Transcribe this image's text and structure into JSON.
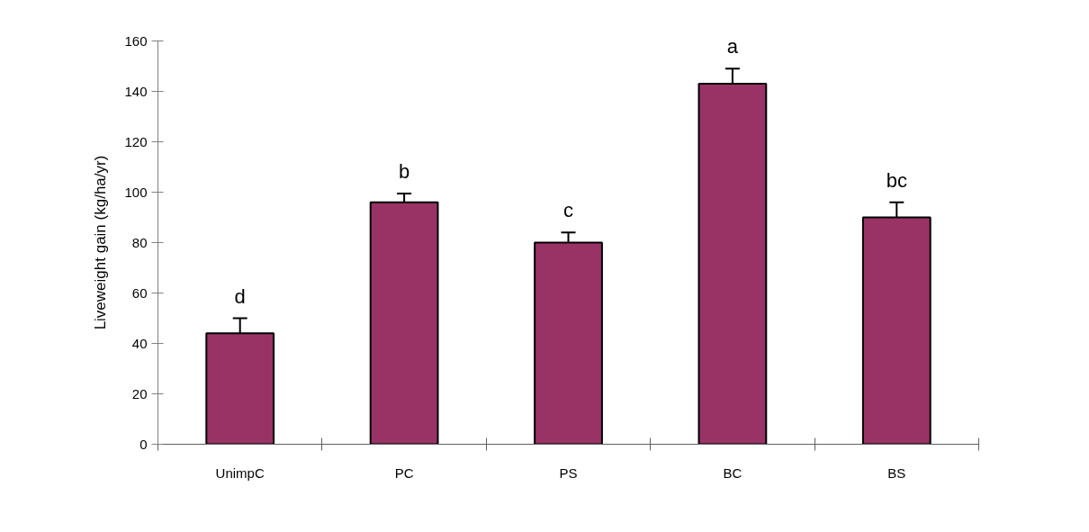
{
  "chart_data": {
    "type": "bar",
    "ylabel": "Liveweight gain (kg/ha/yr)",
    "categories": [
      "UnimpC",
      "PC",
      "PS",
      "BC",
      "BS"
    ],
    "values": [
      44,
      96,
      80,
      143,
      90
    ],
    "errors": [
      6,
      3.5,
      4,
      6,
      6
    ],
    "color": "#993366",
    "ylim": [
      0,
      160
    ],
    "yticks": [
      0,
      20,
      40,
      60,
      80,
      100,
      120,
      140,
      160
    ],
    "grid": false,
    "annotations": [
      "d",
      "b",
      "c",
      "a",
      "bc"
    ]
  }
}
